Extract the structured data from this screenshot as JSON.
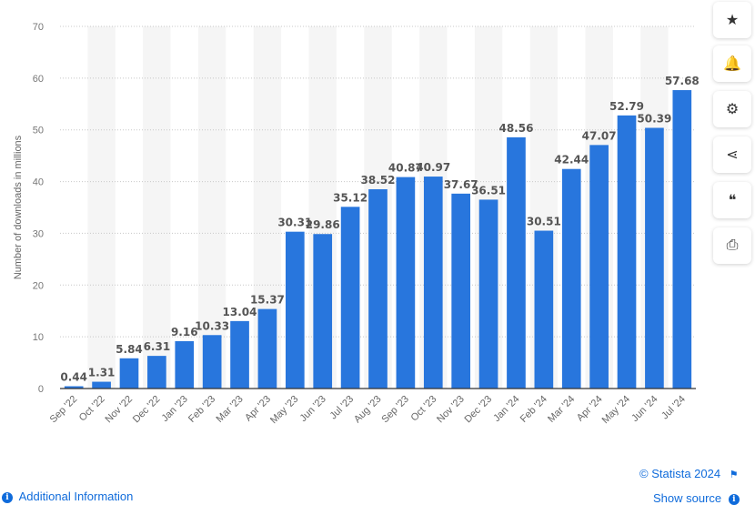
{
  "chart_data": {
    "type": "bar",
    "ylabel": "Number of downloads in millions",
    "ylim": [
      0,
      70
    ],
    "yticks": [
      0,
      10,
      20,
      30,
      40,
      50,
      60,
      70
    ],
    "grid": true,
    "categories": [
      "Sep '22",
      "Oct '22",
      "Nov '22",
      "Dec '22",
      "Jan '23",
      "Feb '23",
      "Mar '23",
      "Apr '23",
      "May '23",
      "Jun '23",
      "Jul '23",
      "Aug '23",
      "Sep '23",
      "Oct '23",
      "Nov '23",
      "Dec '23",
      "Jan '24",
      "Feb '24",
      "Mar '24",
      "Apr '24",
      "May '24",
      "Jun '24",
      "Jul '24"
    ],
    "values": [
      0.44,
      1.31,
      5.84,
      6.31,
      9.16,
      10.33,
      13.04,
      15.37,
      30.31,
      29.86,
      35.12,
      38.52,
      40.87,
      40.97,
      37.67,
      36.51,
      48.56,
      30.51,
      42.44,
      47.07,
      52.79,
      50.39,
      57.68
    ],
    "bar_color": "#2876dd"
  },
  "footer": {
    "copyright": "© Statista 2024",
    "additional_info": "Additional Information",
    "show_source": "Show source",
    "info_glyph": "i"
  },
  "toolbar": {
    "icons": [
      "star-icon",
      "bell-icon",
      "gear-icon",
      "share-icon",
      "quote-icon",
      "print-icon"
    ],
    "glyphs": [
      "★",
      "🔔",
      "⚙",
      "⋖",
      "❝",
      "⎙"
    ]
  }
}
